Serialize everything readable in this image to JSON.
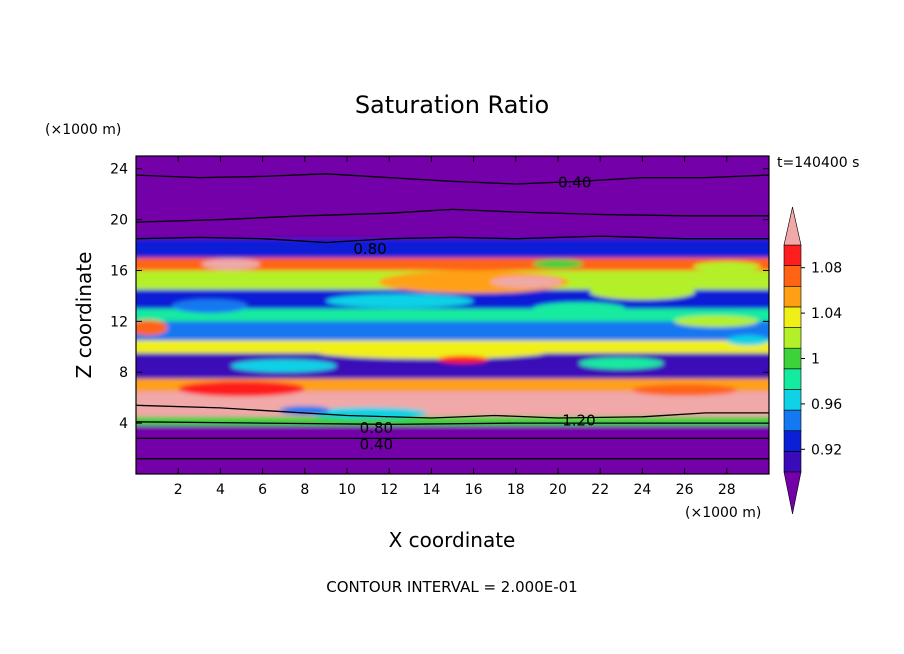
{
  "chart_data": {
    "type": "heatmap",
    "title": "Saturation Ratio",
    "xlabel": "X coordinate",
    "ylabel": "Z coordinate",
    "x_unit": "(×1000 m)",
    "y_unit": "(×1000 m)",
    "time_label": "t=140400 s",
    "footer": "CONTOUR INTERVAL = 2.000E-01",
    "xlim": [
      0,
      30
    ],
    "ylim": [
      0,
      25
    ],
    "x_ticks": [
      2,
      4,
      6,
      8,
      10,
      12,
      14,
      16,
      18,
      20,
      22,
      24,
      26,
      28
    ],
    "y_ticks": [
      4,
      8,
      12,
      16,
      20,
      24
    ],
    "colorbar": {
      "levels": [
        0.9,
        0.92,
        0.94,
        0.96,
        0.98,
        1.0,
        1.02,
        1.04,
        1.06,
        1.08,
        1.1
      ],
      "labels": [
        "0.92",
        "0.96",
        "1",
        "1.04",
        "1.08"
      ],
      "colors": [
        "#7300a8",
        "#3a0bb8",
        "#0a1fd6",
        "#1478f0",
        "#10d2e6",
        "#14eba0",
        "#3ed23a",
        "#b4f02a",
        "#f0f018",
        "#ffa014",
        "#ff6414",
        "#ff1e1e",
        "#f0a8a8"
      ],
      "extend": "both"
    },
    "bands": [
      {
        "z": [
          0,
          3.8
        ],
        "level": 0
      },
      {
        "z": [
          3.8,
          4.5
        ],
        "level": 6
      },
      {
        "z": [
          4.5,
          6.5
        ],
        "level": 12
      },
      {
        "z": [
          6.5,
          7.5
        ],
        "level": 9
      },
      {
        "z": [
          7.5,
          9.5
        ],
        "level": 1
      },
      {
        "z": [
          9.5,
          10.5
        ],
        "level": 8
      },
      {
        "z": [
          10.5,
          12
        ],
        "level": 3
      },
      {
        "z": [
          12,
          13
        ],
        "level": 5
      },
      {
        "z": [
          13,
          14.5
        ],
        "level": 2
      },
      {
        "z": [
          14.5,
          16
        ],
        "level": 7
      },
      {
        "z": [
          16,
          17
        ],
        "level": 10
      },
      {
        "z": [
          17,
          18.5
        ],
        "level": 2
      },
      {
        "z": [
          18.5,
          25
        ],
        "level": 0
      }
    ],
    "blobs": [
      {
        "x": 16,
        "z": 15.1,
        "rx": 4.5,
        "rz": 0.9,
        "level": 9
      },
      {
        "x": 18.5,
        "z": 15.1,
        "rx": 1.7,
        "rz": 0.45,
        "level": 12
      },
      {
        "x": 4.5,
        "z": 16.5,
        "rx": 1.4,
        "rz": 0.45,
        "level": 12
      },
      {
        "x": 24,
        "z": 14.3,
        "rx": 2.5,
        "rz": 0.6,
        "level": 7
      },
      {
        "x": 12.5,
        "z": 13.6,
        "rx": 3.5,
        "rz": 0.55,
        "level": 4
      },
      {
        "x": 21,
        "z": 13.0,
        "rx": 2.2,
        "rz": 0.5,
        "level": 5
      },
      {
        "x": 3.5,
        "z": 13.2,
        "rx": 1.8,
        "rz": 0.55,
        "level": 3
      },
      {
        "x": 0.6,
        "z": 11.5,
        "rx": 0.9,
        "rz": 0.6,
        "level": 10
      },
      {
        "x": 27.5,
        "z": 12.0,
        "rx": 2.0,
        "rz": 0.45,
        "level": 7
      },
      {
        "x": 14,
        "z": 9.6,
        "rx": 5.5,
        "rz": 0.55,
        "level": 8
      },
      {
        "x": 15.5,
        "z": 9.0,
        "rx": 1.2,
        "rz": 0.3,
        "level": 11
      },
      {
        "x": 7,
        "z": 8.5,
        "rx": 2.5,
        "rz": 0.5,
        "level": 4
      },
      {
        "x": 23,
        "z": 8.7,
        "rx": 2.0,
        "rz": 0.45,
        "level": 5
      },
      {
        "x": 29,
        "z": 10.5,
        "rx": 1.0,
        "rz": 0.4,
        "level": 4
      },
      {
        "x": 5,
        "z": 6.7,
        "rx": 3.0,
        "rz": 0.6,
        "level": 11
      },
      {
        "x": 26,
        "z": 6.6,
        "rx": 2.5,
        "rz": 0.45,
        "level": 10
      },
      {
        "x": 11,
        "z": 4.8,
        "rx": 2.8,
        "rz": 0.45,
        "level": 4
      },
      {
        "x": 8,
        "z": 5.0,
        "rx": 1.2,
        "rz": 0.35,
        "level": 3
      },
      {
        "x": 20,
        "z": 16.5,
        "rx": 1.2,
        "rz": 0.35,
        "level": 6
      },
      {
        "x": 28,
        "z": 16.3,
        "rx": 1.6,
        "rz": 0.4,
        "level": 7
      }
    ],
    "contours": [
      {
        "label": "0.40",
        "label_x": 20,
        "label_z": 22.9,
        "points": [
          [
            0,
            23.5
          ],
          [
            3,
            23.3
          ],
          [
            6,
            23.4
          ],
          [
            9,
            23.6
          ],
          [
            12,
            23.3
          ],
          [
            15,
            23.0
          ],
          [
            18,
            22.8
          ],
          [
            21,
            23.0
          ],
          [
            24,
            23.3
          ],
          [
            27,
            23.3
          ],
          [
            30,
            23.5
          ]
        ]
      },
      {
        "label": "",
        "label_x": 0,
        "label_z": 0,
        "points": [
          [
            0,
            19.8
          ],
          [
            4,
            20.0
          ],
          [
            8,
            20.3
          ],
          [
            12,
            20.5
          ],
          [
            15,
            20.8
          ],
          [
            18,
            20.6
          ],
          [
            22,
            20.4
          ],
          [
            26,
            20.3
          ],
          [
            30,
            20.3
          ]
        ]
      },
      {
        "label": "0.80",
        "label_x": 10.3,
        "label_z": 17.7,
        "points": [
          [
            0,
            18.5
          ],
          [
            3,
            18.6
          ],
          [
            6,
            18.5
          ],
          [
            9,
            18.2
          ],
          [
            12,
            18.5
          ],
          [
            15,
            18.6
          ],
          [
            18,
            18.5
          ],
          [
            22,
            18.7
          ],
          [
            26,
            18.5
          ],
          [
            30,
            18.5
          ]
        ]
      },
      {
        "label": "1.20",
        "label_x": 20.2,
        "label_z": 4.2,
        "points": [
          [
            0,
            5.4
          ],
          [
            4,
            5.2
          ],
          [
            7,
            4.9
          ],
          [
            10,
            4.6
          ],
          [
            14,
            4.4
          ],
          [
            17,
            4.6
          ],
          [
            20,
            4.4
          ],
          [
            24,
            4.5
          ],
          [
            27,
            4.8
          ],
          [
            30,
            4.8
          ]
        ]
      },
      {
        "label": "0.80",
        "label_x": 10.6,
        "label_z": 3.6,
        "points": [
          [
            0,
            4.1
          ],
          [
            6,
            4.0
          ],
          [
            12,
            3.9
          ],
          [
            18,
            4.0
          ],
          [
            24,
            4.0
          ],
          [
            30,
            4.0
          ]
        ]
      },
      {
        "label": "0.40",
        "label_x": 10.6,
        "label_z": 2.3,
        "points": [
          [
            0,
            2.8
          ],
          [
            6,
            2.8
          ],
          [
            12,
            2.8
          ],
          [
            18,
            2.8
          ],
          [
            24,
            2.8
          ],
          [
            30,
            2.8
          ]
        ]
      },
      {
        "label": "",
        "label_x": 0,
        "label_z": 0,
        "points": [
          [
            0,
            1.2
          ],
          [
            6,
            1.2
          ],
          [
            12,
            1.2
          ],
          [
            18,
            1.2
          ],
          [
            24,
            1.2
          ],
          [
            30,
            1.2
          ]
        ]
      }
    ]
  }
}
